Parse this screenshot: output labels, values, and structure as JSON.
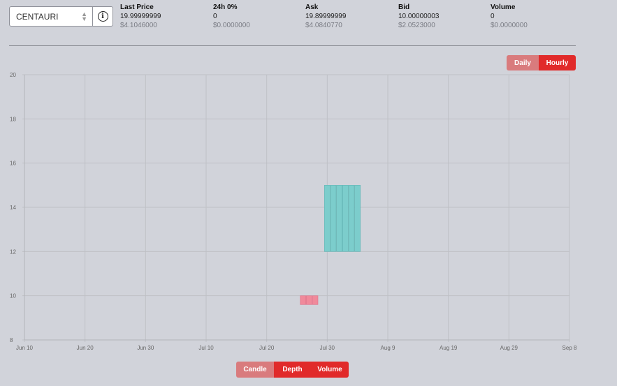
{
  "market": {
    "selected": "CENTAURI"
  },
  "stats": [
    {
      "label": "Last Price",
      "value": "19.99999999",
      "usd": "$4.1046000"
    },
    {
      "label": "24h 0%",
      "value": "0",
      "usd": "$0.0000000"
    },
    {
      "label": "Ask",
      "value": "19.89999999",
      "usd": "$4.0840770"
    },
    {
      "label": "Bid",
      "value": "10.00000003",
      "usd": "$2.0523000"
    },
    {
      "label": "Volume",
      "value": "0",
      "usd": "$0.0000000"
    }
  ],
  "interval_toggle": {
    "daily_label": "Daily",
    "hourly_label": "Hourly",
    "active": "Hourly"
  },
  "chart_toggle": {
    "candle_label": "Candle",
    "depth_label": "Depth",
    "volume_label": "Volume"
  },
  "chart_data": {
    "type": "candlestick",
    "x_ticks": [
      "Jun 10",
      "Jun 20",
      "Jun 30",
      "Jul 10",
      "Jul 20",
      "Jul 30",
      "Aug 9",
      "Aug 19",
      "Aug 29",
      "Sep 8"
    ],
    "y_ticks": [
      8,
      10,
      12,
      14,
      16,
      18,
      20
    ],
    "xlim": [
      "2021-06-10",
      "2021-09-08"
    ],
    "ylim": [
      8,
      20
    ],
    "grid": true,
    "candles": [
      {
        "date": "2021-07-26",
        "open": 10.0,
        "close": 9.6,
        "high": 10.0,
        "low": 9.6
      },
      {
        "date": "2021-07-27",
        "open": 10.0,
        "close": 9.6,
        "high": 10.0,
        "low": 9.6
      },
      {
        "date": "2021-07-28",
        "open": 10.0,
        "close": 9.6,
        "high": 10.0,
        "low": 9.6
      },
      {
        "date": "2021-07-30",
        "open": 12.0,
        "close": 15.0,
        "high": 15.0,
        "low": 12.0
      },
      {
        "date": "2021-07-31",
        "open": 12.0,
        "close": 15.0,
        "high": 15.0,
        "low": 12.0
      },
      {
        "date": "2021-08-01",
        "open": 12.0,
        "close": 15.0,
        "high": 15.0,
        "low": 12.0
      },
      {
        "date": "2021-08-02",
        "open": 12.0,
        "close": 15.0,
        "high": 15.0,
        "low": 12.0
      },
      {
        "date": "2021-08-03",
        "open": 12.0,
        "close": 15.0,
        "high": 15.0,
        "low": 12.0
      },
      {
        "date": "2021-08-04",
        "open": 12.0,
        "close": 15.0,
        "high": 15.0,
        "low": 12.0
      }
    ],
    "up_color": "#7ccdcc",
    "down_color": "#f08a9b"
  }
}
